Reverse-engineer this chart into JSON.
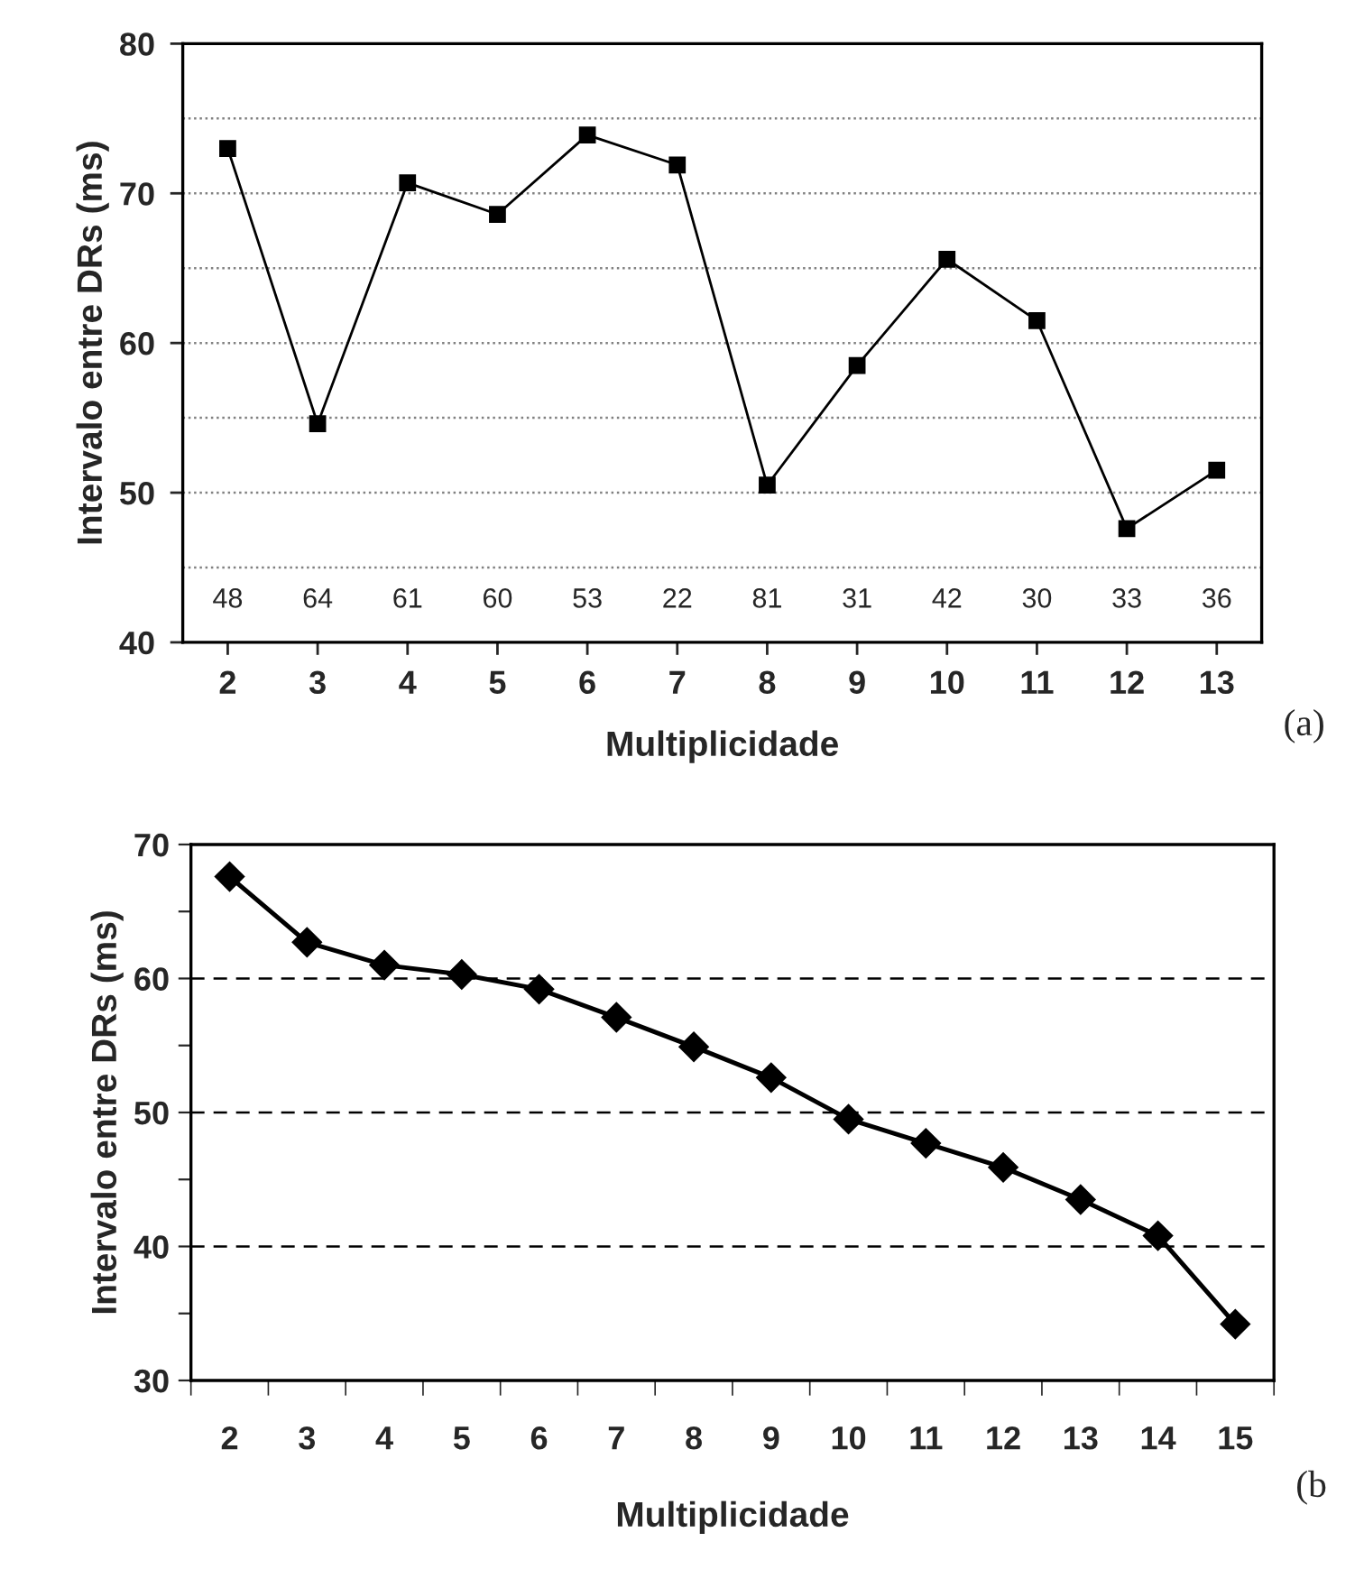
{
  "chart_data": [
    {
      "type": "line",
      "xlabel": "Multiplicidade",
      "ylabel": "Intervalo entre DRs (ms)",
      "categories": [
        "2",
        "3",
        "4",
        "5",
        "6",
        "7",
        "8",
        "9",
        "10",
        "11",
        "12",
        "13"
      ],
      "series": [
        {
          "color": "#000000",
          "values": [
            73.0,
            54.6,
            70.7,
            68.6,
            73.9,
            71.9,
            50.5,
            58.5,
            65.6,
            61.5,
            47.6,
            51.5
          ]
        }
      ],
      "marker": "square",
      "line_style": "solid",
      "ylim": [
        40,
        80
      ],
      "yticks": [
        40,
        50,
        60,
        70,
        80
      ],
      "ref_lines": [
        {
          "axis": "y",
          "value": 45,
          "line_style": "dotted",
          "color": "#808080"
        },
        {
          "axis": "y",
          "value": 50,
          "line_style": "dotted",
          "color": "#808080"
        },
        {
          "axis": "y",
          "value": 55,
          "line_style": "dotted",
          "color": "#808080"
        },
        {
          "axis": "y",
          "value": 60,
          "line_style": "dotted",
          "color": "#808080"
        },
        {
          "axis": "y",
          "value": 65,
          "line_style": "dotted",
          "color": "#808080"
        },
        {
          "axis": "y",
          "value": 70,
          "line_style": "dotted",
          "color": "#808080"
        },
        {
          "axis": "y",
          "value": 75,
          "line_style": "dotted",
          "color": "#808080"
        }
      ],
      "annotations": [
        "48",
        "64",
        "61",
        "60",
        "53",
        "22",
        "81",
        "31",
        "42",
        "30",
        "33",
        "36",
        "(a)"
      ]
    },
    {
      "type": "line",
      "xlabel": "Multiplicidade",
      "ylabel": "Intervalo entre DRs (ms)",
      "categories": [
        "2",
        "3",
        "4",
        "5",
        "6",
        "7",
        "8",
        "9",
        "10",
        "11",
        "12",
        "13",
        "14",
        "15"
      ],
      "series": [
        {
          "color": "#000000",
          "values": [
            67.6,
            62.7,
            61.0,
            60.3,
            59.2,
            57.1,
            54.9,
            52.6,
            49.5,
            47.7,
            45.9,
            43.5,
            40.8,
            34.2
          ]
        }
      ],
      "marker": "diamond",
      "line_style": "solid",
      "ylim": [
        30,
        70
      ],
      "yticks": [
        30,
        {
          "value": 35,
          "label": null
        },
        40,
        {
          "value": 45,
          "label": null
        },
        50,
        {
          "value": 55,
          "label": null
        },
        60,
        {
          "value": 65,
          "label": null
        },
        70
      ],
      "ref_lines": [
        {
          "axis": "y",
          "value": 40,
          "line_style": "dashed",
          "color": "#000000"
        },
        {
          "axis": "y",
          "value": 50,
          "line_style": "dashed",
          "color": "#000000"
        },
        {
          "axis": "y",
          "value": 60,
          "line_style": "dashed",
          "color": "#000000"
        }
      ],
      "annotations": [
        "(b"
      ]
    }
  ]
}
